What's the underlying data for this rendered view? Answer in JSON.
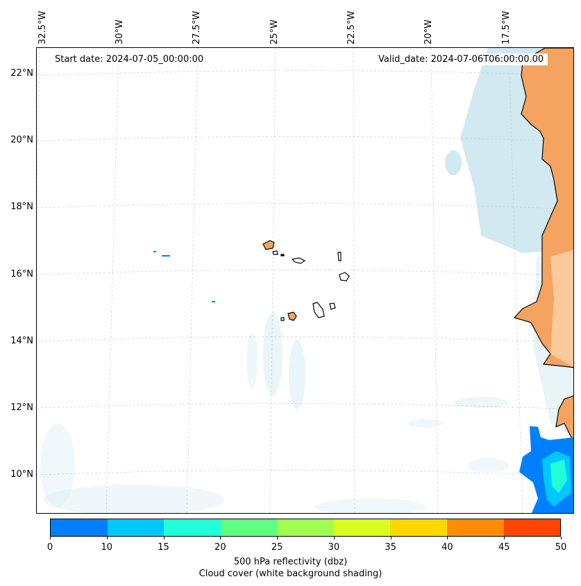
{
  "map": {
    "start_date": "Start date: 2024-07-05_00:00:00",
    "valid_date": "Valid_date: 2024-07-06T06:00:00.00"
  },
  "axes": {
    "longitude_labels": [
      "32.5°W",
      "30°W",
      "27.5°W",
      "25°W",
      "22.5°W",
      "20°W",
      "17.5°W"
    ],
    "latitude_labels": [
      "22°N",
      "20°N",
      "18°N",
      "16°N",
      "14°N",
      "12°N",
      "10°N"
    ]
  },
  "colorbar": {
    "ticks": [
      "0",
      "10",
      "15",
      "20",
      "25",
      "30",
      "35",
      "40",
      "45",
      "50"
    ],
    "colors": [
      "#0080ff",
      "#00c8ff",
      "#20ffd8",
      "#60ff80",
      "#a0ff50",
      "#d8ff20",
      "#ffd700",
      "#ff8c00",
      "#ff4500"
    ],
    "label_line1": "500 hPa reflectivity (dbz)",
    "label_line2": "Cloud cover (white background shading)"
  },
  "colors": {
    "land": "#f4a460",
    "cloud": "#add8e6",
    "grid": "#cccccc"
  }
}
